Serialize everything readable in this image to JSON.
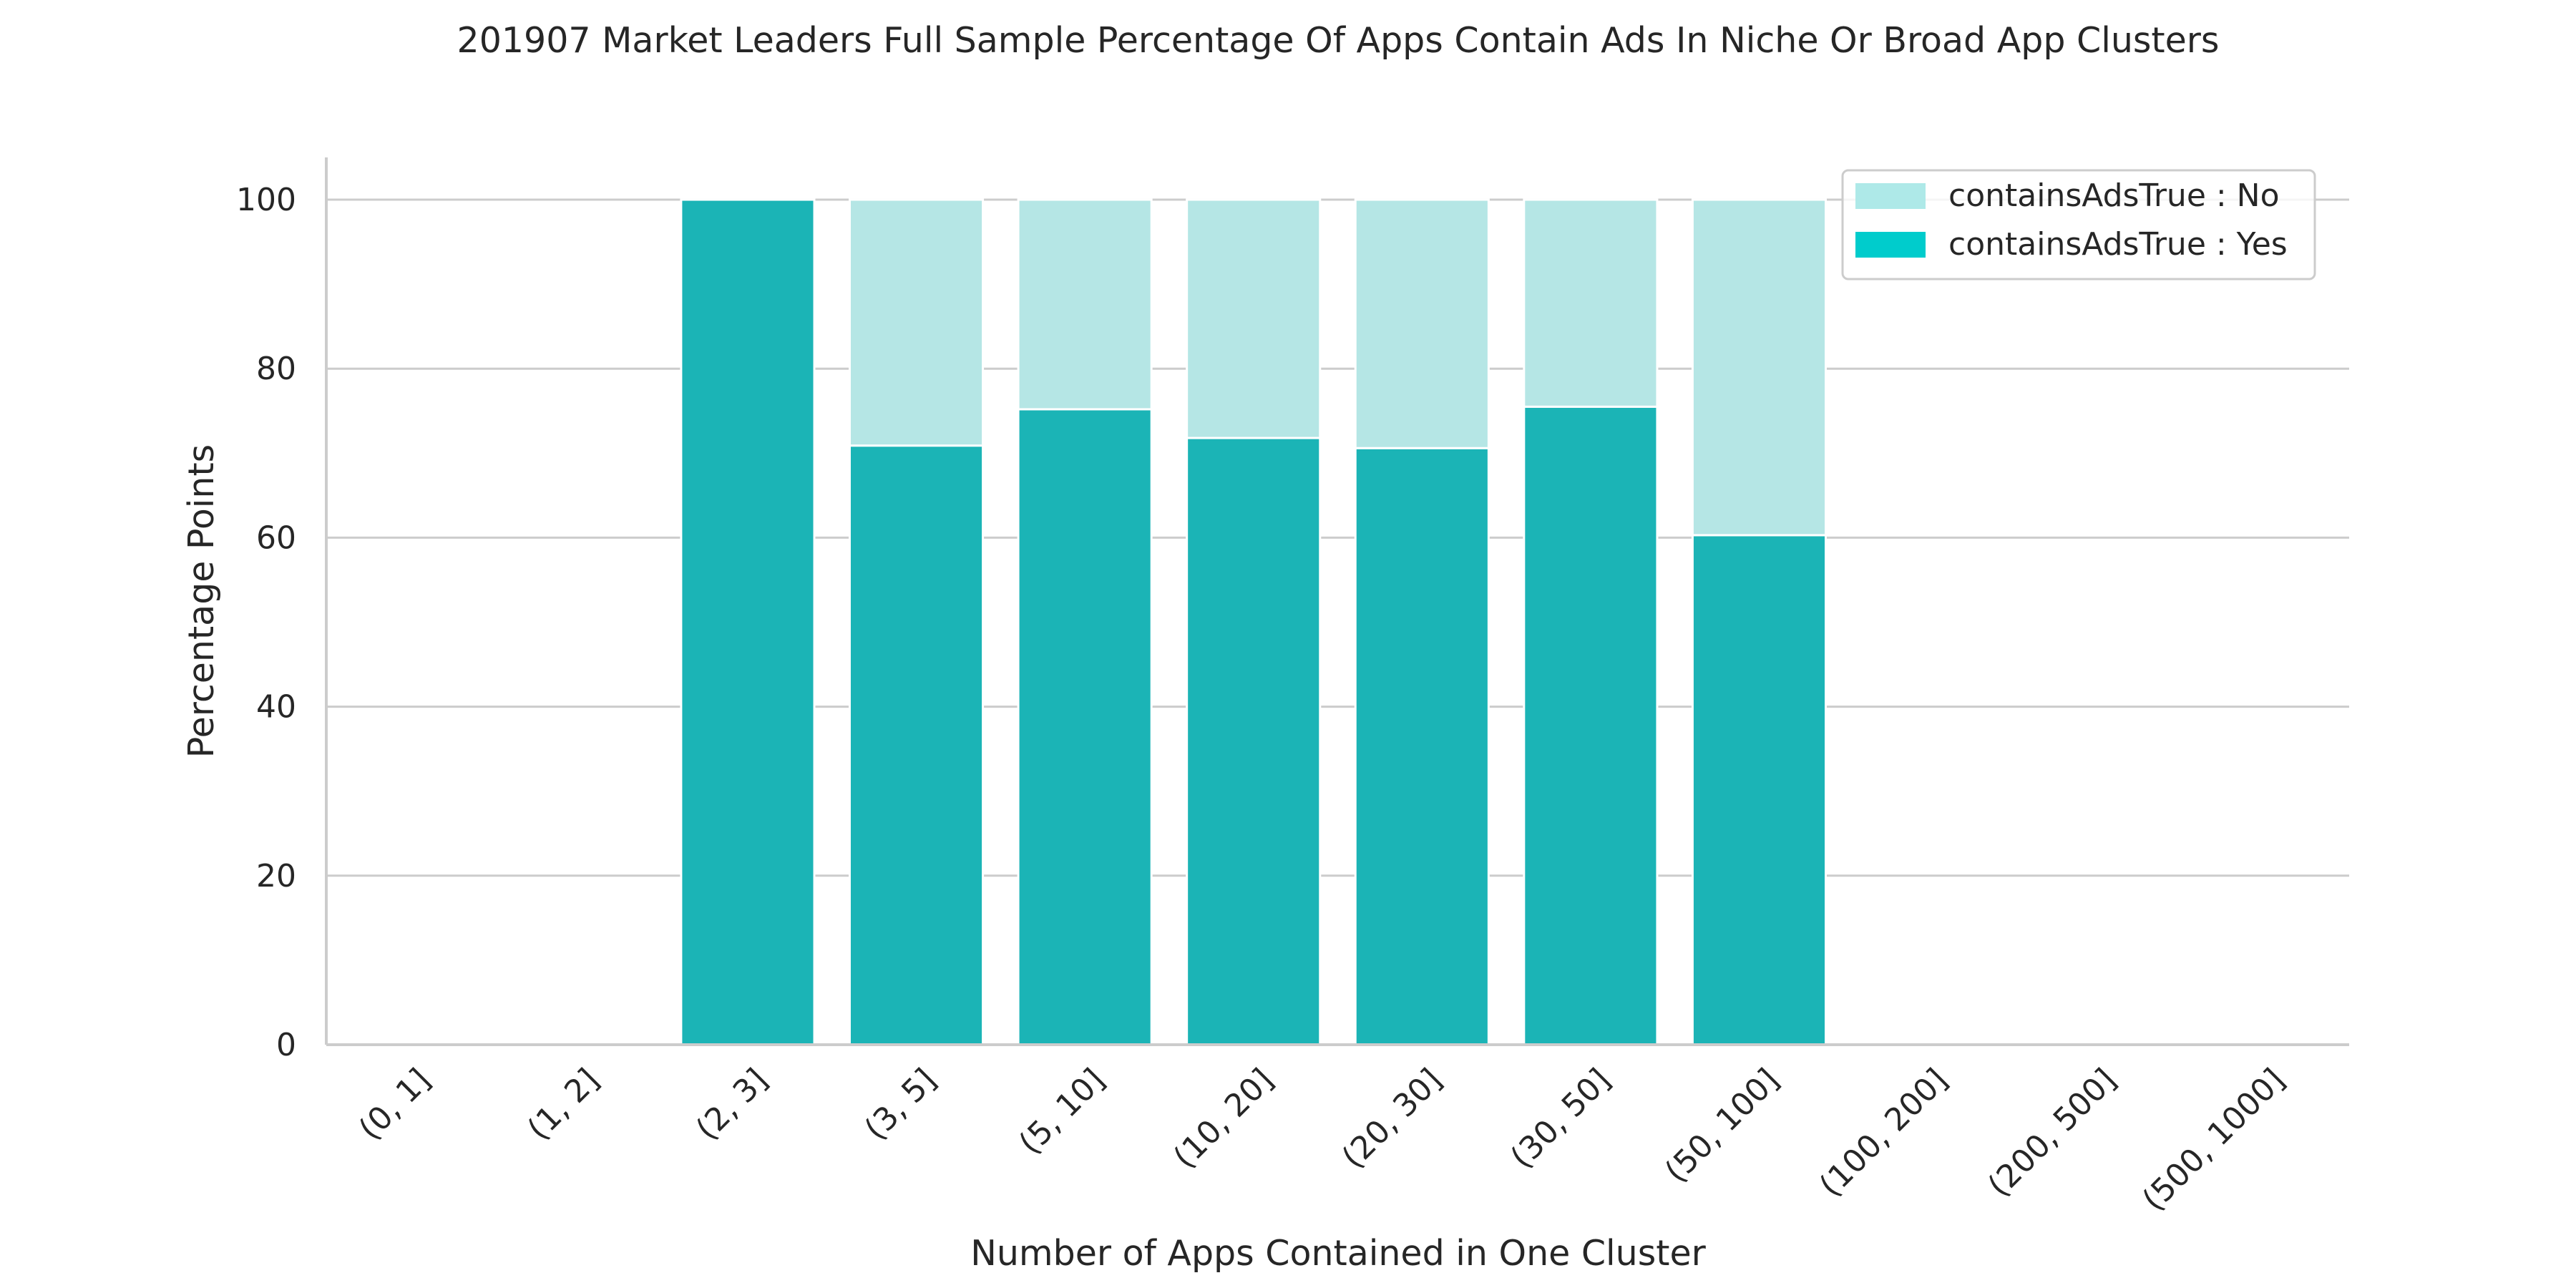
{
  "chart_data": {
    "type": "bar",
    "stacked": true,
    "title": "201907 Market Leaders Full Sample Percentage Of Apps Contain Ads In Niche Or Broad App Clusters",
    "xlabel": "Number of Apps Contained in One Cluster",
    "ylabel": "Percentage Points",
    "categories": [
      "(0, 1]",
      "(1, 2]",
      "(2, 3]",
      "(3, 5]",
      "(5, 10]",
      "(10, 20]",
      "(20, 30]",
      "(30, 50]",
      "(50, 100]",
      "(100, 200]",
      "(200, 500]",
      "(500, 1000]"
    ],
    "series": [
      {
        "name": "containsAdsTrue : Yes",
        "color": "#1bb4b6",
        "values": [
          0,
          0,
          100,
          70.9,
          75.2,
          71.8,
          70.6,
          75.5,
          60.3,
          0,
          0,
          0
        ]
      },
      {
        "name": "containsAdsTrue : No",
        "color": "#b5e6e5",
        "values": [
          0,
          0,
          0,
          29.1,
          24.8,
          28.2,
          29.4,
          24.5,
          39.7,
          0,
          0,
          0
        ]
      }
    ],
    "legend_order": [
      "containsAdsTrue : No",
      "containsAdsTrue : Yes"
    ],
    "legend_colors": {
      "containsAdsTrue : No": "#aee9e8",
      "containsAdsTrue : Yes": "#00cccc"
    },
    "legend_position": "top-right",
    "ylim": [
      0,
      105
    ],
    "yticks": [
      0,
      20,
      40,
      60,
      80,
      100
    ],
    "grid": "horizontal"
  }
}
